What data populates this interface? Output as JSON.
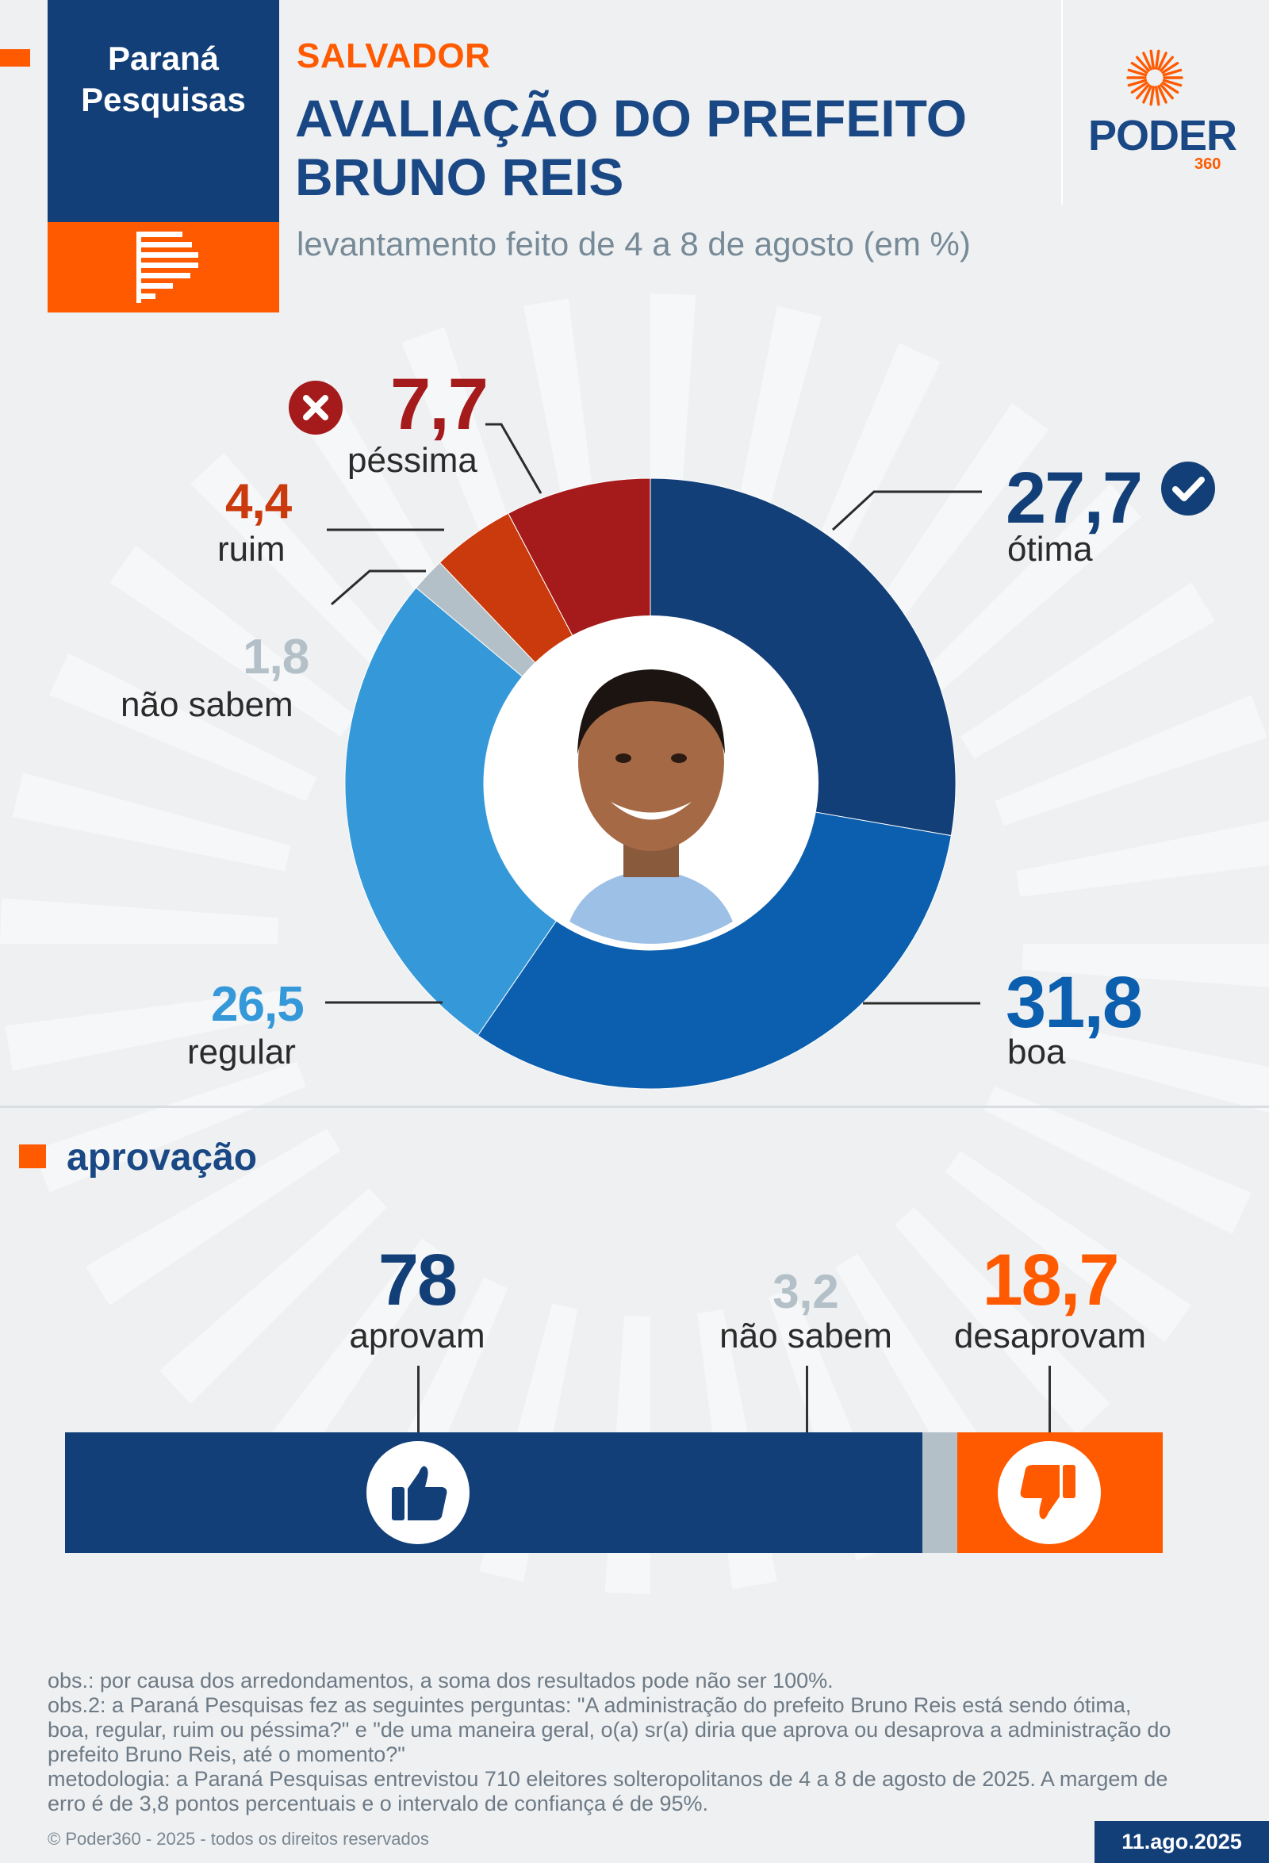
{
  "brand": {
    "institute_name": "Paraná Pesquisas",
    "publisher_name": "PODER",
    "publisher_number": "360"
  },
  "header": {
    "kicker": "SALVADOR",
    "title": "AVALIAÇÃO DO PREFEITO BRUNO REIS",
    "subtitle": "levantamento feito de 4 a 8 de agosto (em %)"
  },
  "chart_data": [
    {
      "type": "pie",
      "subtype": "donut",
      "title": "AVALIAÇÃO DO PREFEITO BRUNO REIS",
      "unit": "%",
      "start": "12 o'clock, clockwise",
      "slices": [
        {
          "label": "ótima",
          "value": 27.7,
          "display": "27,7",
          "color": "#133f78"
        },
        {
          "label": "boa",
          "value": 31.8,
          "display": "31,8",
          "color": "#0b5fae"
        },
        {
          "label": "regular",
          "value": 26.5,
          "display": "26,5",
          "color": "#3598d8"
        },
        {
          "label": "não sabem",
          "value": 1.8,
          "display": "1,8",
          "color": "#b4c0c8"
        },
        {
          "label": "ruim",
          "value": 4.4,
          "display": "4,4",
          "color": "#cb3a0c"
        },
        {
          "label": "péssima",
          "value": 7.7,
          "display": "7,7",
          "color": "#a51b1c"
        }
      ]
    },
    {
      "type": "bar",
      "subtype": "100% stacked horizontal",
      "title": "aprovação",
      "unit": "%",
      "series": [
        {
          "name": "aprovam",
          "value": 78,
          "display": "78",
          "color": "#133f78"
        },
        {
          "name": "não sabem",
          "value": 3.2,
          "display": "3,2",
          "color": "#b4c0c8"
        },
        {
          "name": "desaprovam",
          "value": 18.7,
          "display": "18,7",
          "color": "#ff5a00"
        }
      ]
    }
  ],
  "icons": {
    "check": "check-circle-icon",
    "x": "x-circle-icon",
    "thumbs_up": "thumbs-up-icon",
    "thumbs_down": "thumbs-down-icon"
  },
  "notes": [
    "obs.: por causa dos arredondamentos, a soma dos resultados pode não ser 100%.",
    "obs.2: a Paraná Pesquisas fez as seguintes perguntas: \"A administração do prefeito Bruno Reis está sendo ótima, boa, regular, ruim ou péssima?\" e \"de uma maneira geral, o(a) sr(a) diria que aprova ou desaprova a administração do prefeito Bruno Reis, até o momento?\"",
    "metodologia: a Paraná Pesquisas entrevistou 710 eleitores solteropolitanos de 4 a 8 de agosto de 2025. A margem de erro é de 3,8 pontos percentuais e o intervalo de confiança é de 95%."
  ],
  "footer": {
    "copyright": "© Poder360 - 2025 - todos os direitos reservados",
    "date": "11.ago.2025"
  }
}
